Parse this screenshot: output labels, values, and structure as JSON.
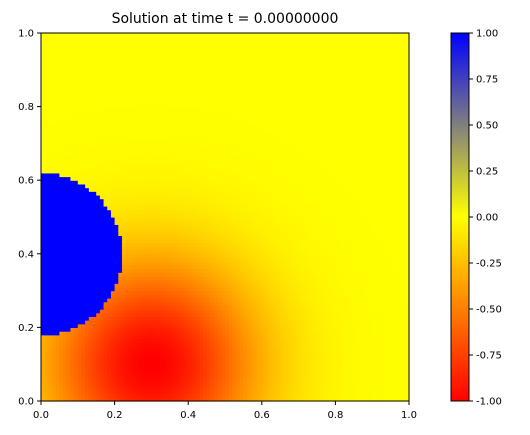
{
  "chart_data": {
    "type": "heatmap",
    "title": "Solution at time t =     0.00000000",
    "xlabel": "",
    "ylabel": "",
    "xlim": [
      0,
      1
    ],
    "ylim": [
      0,
      1
    ],
    "x_ticks": [
      "0.0",
      "0.2",
      "0.4",
      "0.6",
      "0.8",
      "1.0"
    ],
    "y_ticks": [
      "0.0",
      "0.2",
      "0.4",
      "0.6",
      "0.8",
      "1.0"
    ],
    "grid": false,
    "field": {
      "background_value": 0.0,
      "circle": {
        "center_x": 0.0,
        "center_y": 0.4,
        "radius": 0.22,
        "value": 1.0
      },
      "gaussian": {
        "center_x": 0.3,
        "center_y": 0.1,
        "amplitude": -1.0,
        "spread": 0.2
      }
    },
    "colorbar": {
      "range": [
        -1.0,
        1.0
      ],
      "ticks": [
        "1.00",
        "0.75",
        "0.50",
        "0.25",
        "0.00",
        "-0.25",
        "-0.50",
        "-0.75",
        "-1.00"
      ],
      "colors": {
        "low": "#ff0000",
        "mid": "#ffff00",
        "high": "#0000ff"
      }
    }
  }
}
